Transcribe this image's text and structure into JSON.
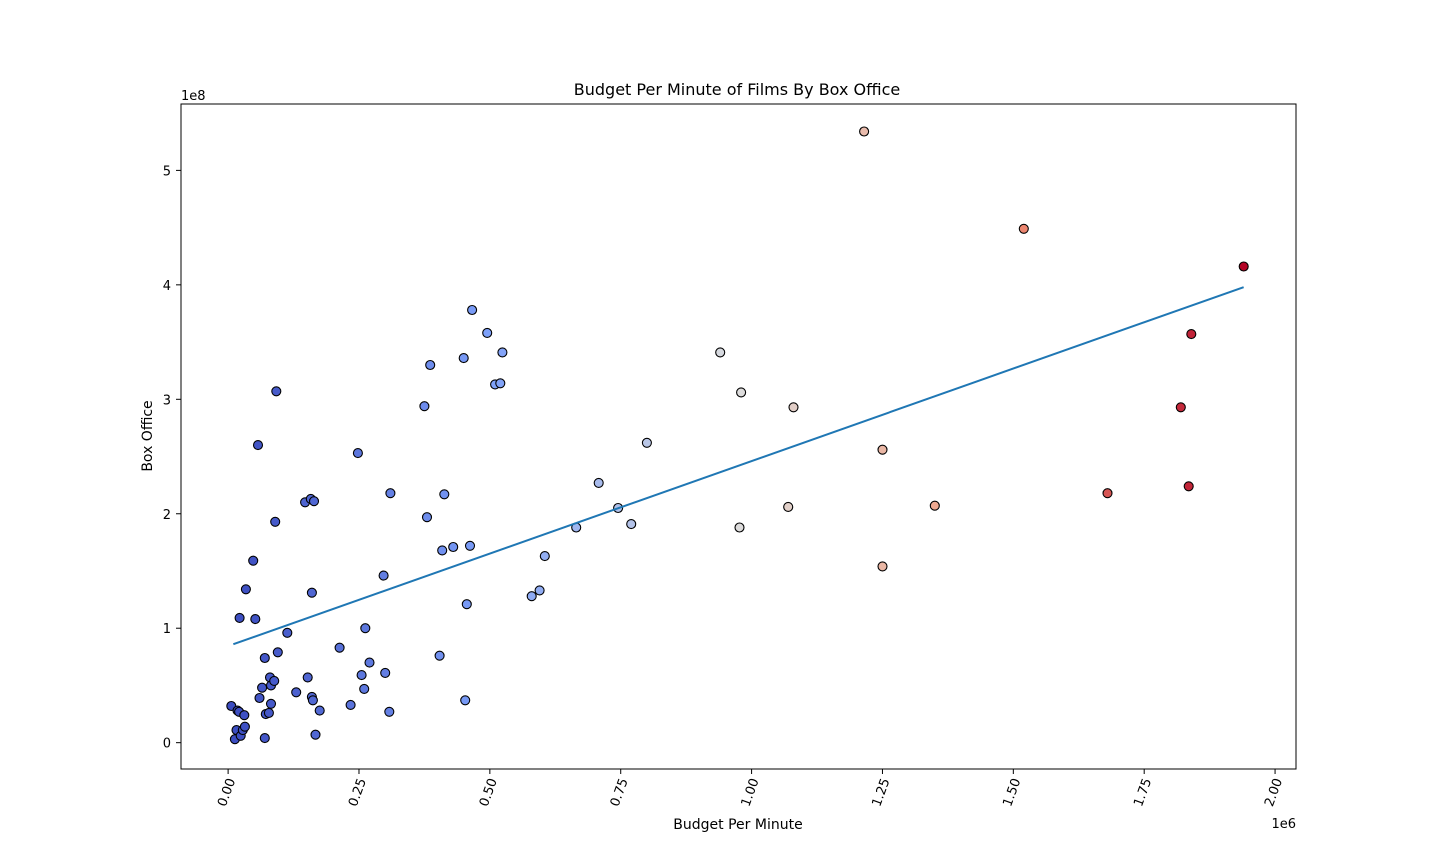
{
  "chart_data": {
    "type": "scatter",
    "title": "Budget Per Minute of Films By Box Office",
    "xlabel": "Budget Per Minute",
    "ylabel": "Box Office",
    "x_offset_label": "1e6",
    "y_offset_label": "1e8",
    "xlim": [
      -0.09,
      2.04
    ],
    "ylim": [
      -0.23,
      5.58
    ],
    "x_ticks": [
      0.0,
      0.25,
      0.5,
      0.75,
      1.0,
      1.25,
      1.5,
      1.75,
      2.0
    ],
    "x_tick_labels": [
      "0.00",
      "0.25",
      "0.50",
      "0.75",
      "1.00",
      "1.25",
      "1.50",
      "1.75",
      "2.00"
    ],
    "y_ticks": [
      0,
      1,
      2,
      3,
      4,
      5
    ],
    "y_tick_labels": [
      "0",
      "1",
      "2",
      "3",
      "4",
      "5"
    ],
    "grid": false,
    "colormap": "coolwarm",
    "color_encodes": "x",
    "trendline": {
      "color": "#1f77b4",
      "x": [
        0.01,
        1.94
      ],
      "y": [
        0.86,
        3.98
      ]
    },
    "points": [
      [
        0.006,
        0.32
      ],
      [
        0.013,
        0.03
      ],
      [
        0.016,
        0.11
      ],
      [
        0.018,
        0.28
      ],
      [
        0.021,
        0.27
      ],
      [
        0.024,
        0.06
      ],
      [
        0.028,
        0.11
      ],
      [
        0.031,
        0.24
      ],
      [
        0.032,
        0.14
      ],
      [
        0.022,
        1.09
      ],
      [
        0.034,
        1.34
      ],
      [
        0.048,
        1.59
      ],
      [
        0.052,
        1.08
      ],
      [
        0.057,
        2.6
      ],
      [
        0.06,
        0.39
      ],
      [
        0.065,
        0.48
      ],
      [
        0.07,
        0.74
      ],
      [
        0.07,
        0.04
      ],
      [
        0.072,
        0.25
      ],
      [
        0.078,
        0.26
      ],
      [
        0.08,
        0.57
      ],
      [
        0.082,
        0.5
      ],
      [
        0.082,
        0.34
      ],
      [
        0.088,
        0.54
      ],
      [
        0.09,
        1.93
      ],
      [
        0.092,
        3.07
      ],
      [
        0.095,
        0.79
      ],
      [
        0.113,
        0.96
      ],
      [
        0.13,
        0.44
      ],
      [
        0.147,
        2.1
      ],
      [
        0.152,
        0.57
      ],
      [
        0.158,
        2.13
      ],
      [
        0.16,
        0.4
      ],
      [
        0.16,
        1.31
      ],
      [
        0.162,
        0.37
      ],
      [
        0.164,
        2.11
      ],
      [
        0.167,
        0.07
      ],
      [
        0.175,
        0.28
      ],
      [
        0.213,
        0.83
      ],
      [
        0.234,
        0.33
      ],
      [
        0.248,
        2.53
      ],
      [
        0.255,
        0.59
      ],
      [
        0.26,
        0.47
      ],
      [
        0.262,
        1.0
      ],
      [
        0.27,
        0.7
      ],
      [
        0.297,
        1.46
      ],
      [
        0.3,
        0.61
      ],
      [
        0.308,
        0.27
      ],
      [
        0.31,
        2.18
      ],
      [
        0.375,
        2.94
      ],
      [
        0.38,
        1.97
      ],
      [
        0.386,
        3.3
      ],
      [
        0.404,
        0.76
      ],
      [
        0.409,
        1.68
      ],
      [
        0.413,
        2.17
      ],
      [
        0.43,
        1.71
      ],
      [
        0.45,
        3.36
      ],
      [
        0.453,
        0.37
      ],
      [
        0.456,
        1.21
      ],
      [
        0.462,
        1.72
      ],
      [
        0.466,
        3.78
      ],
      [
        0.495,
        3.58
      ],
      [
        0.51,
        3.13
      ],
      [
        0.52,
        3.14
      ],
      [
        0.524,
        3.41
      ],
      [
        0.58,
        1.28
      ],
      [
        0.595,
        1.33
      ],
      [
        0.605,
        1.63
      ],
      [
        0.665,
        1.88
      ],
      [
        0.708,
        2.27
      ],
      [
        0.745,
        2.05
      ],
      [
        0.77,
        1.91
      ],
      [
        0.8,
        2.62
      ],
      [
        0.94,
        3.41
      ],
      [
        0.977,
        1.88
      ],
      [
        0.98,
        3.06
      ],
      [
        1.07,
        2.06
      ],
      [
        1.08,
        2.93
      ],
      [
        1.215,
        5.34
      ],
      [
        1.25,
        2.56
      ],
      [
        1.25,
        1.54
      ],
      [
        1.35,
        2.07
      ],
      [
        1.52,
        4.49
      ],
      [
        1.68,
        2.18
      ],
      [
        1.82,
        2.93
      ],
      [
        1.835,
        2.24
      ],
      [
        1.84,
        3.57
      ],
      [
        1.94,
        4.16
      ]
    ]
  }
}
